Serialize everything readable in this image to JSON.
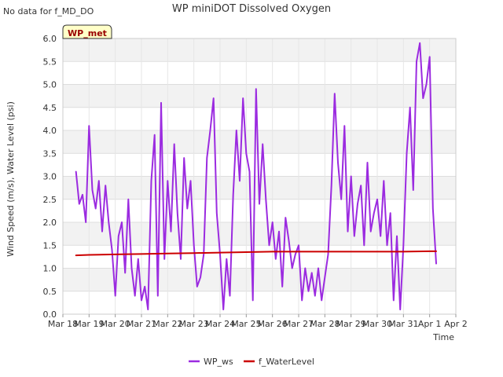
{
  "header": {
    "no_data_note": "No data for f_MD_DO",
    "badge": "WP_met"
  },
  "chart_data": {
    "type": "line",
    "title": "WP miniDOT Dissolved Oxygen",
    "xlabel": "Time",
    "ylabel": "Wind Speed (m/s), Water Level (psi)",
    "xlim": [
      "2024-03-18",
      "2024-04-02"
    ],
    "ylim": [
      0,
      6.0
    ],
    "x_tick_labels": [
      "Mar 18",
      "Mar 19",
      "Mar 20",
      "Mar 21",
      "Mar 22",
      "Mar 23",
      "Mar 24",
      "Mar 25",
      "Mar 26",
      "Mar 27",
      "Mar 28",
      "Mar 29",
      "Mar 30",
      "Mar 31",
      "Apr 1",
      "Apr 2"
    ],
    "y_ticks": [
      0.0,
      0.5,
      1.0,
      1.5,
      2.0,
      2.5,
      3.0,
      3.5,
      4.0,
      4.5,
      5.0,
      5.5,
      6.0
    ],
    "y_tick_labels": [
      "0.0",
      "0.5",
      "1.0",
      "1.5",
      "2.0",
      "2.5",
      "3.0",
      "3.5",
      "4.0",
      "4.5",
      "5.0",
      "5.5",
      "6.0"
    ],
    "grid": true,
    "legend_position": "bottom-center",
    "series": [
      {
        "name": "WP_ws",
        "color": "#9b2be0",
        "x": [
          "2024-03-18T12:00",
          "2024-03-18T15:00",
          "2024-03-18T18:00",
          "2024-03-18T21:00",
          "2024-03-19T00:00",
          "2024-03-19T03:00",
          "2024-03-19T06:00",
          "2024-03-19T09:00",
          "2024-03-19T12:00",
          "2024-03-19T15:00",
          "2024-03-19T18:00",
          "2024-03-19T21:00",
          "2024-03-20T00:00",
          "2024-03-20T03:00",
          "2024-03-20T06:00",
          "2024-03-20T09:00",
          "2024-03-20T12:00",
          "2024-03-20T15:00",
          "2024-03-20T18:00",
          "2024-03-20T21:00",
          "2024-03-21T00:00",
          "2024-03-21T03:00",
          "2024-03-21T06:00",
          "2024-03-21T09:00",
          "2024-03-21T12:00",
          "2024-03-21T15:00",
          "2024-03-21T18:00",
          "2024-03-21T21:00",
          "2024-03-22T00:00",
          "2024-03-22T03:00",
          "2024-03-22T06:00",
          "2024-03-22T09:00",
          "2024-03-22T12:00",
          "2024-03-22T15:00",
          "2024-03-22T18:00",
          "2024-03-22T21:00",
          "2024-03-23T00:00",
          "2024-03-23T03:00",
          "2024-03-23T06:00",
          "2024-03-23T09:00",
          "2024-03-23T12:00",
          "2024-03-23T15:00",
          "2024-03-23T18:00",
          "2024-03-23T21:00",
          "2024-03-24T00:00",
          "2024-03-24T03:00",
          "2024-03-24T06:00",
          "2024-03-24T09:00",
          "2024-03-24T12:00",
          "2024-03-24T15:00",
          "2024-03-24T18:00",
          "2024-03-24T21:00",
          "2024-03-25T00:00",
          "2024-03-25T03:00",
          "2024-03-25T06:00",
          "2024-03-25T09:00",
          "2024-03-25T12:00",
          "2024-03-25T15:00",
          "2024-03-25T18:00",
          "2024-03-25T21:00",
          "2024-03-26T00:00",
          "2024-03-26T03:00",
          "2024-03-26T06:00",
          "2024-03-26T09:00",
          "2024-03-26T12:00",
          "2024-03-26T15:00",
          "2024-03-26T18:00",
          "2024-03-26T21:00",
          "2024-03-27T00:00",
          "2024-03-27T03:00",
          "2024-03-27T06:00",
          "2024-03-27T09:00",
          "2024-03-27T12:00",
          "2024-03-27T15:00",
          "2024-03-27T18:00",
          "2024-03-27T21:00",
          "2024-03-28T00:00",
          "2024-03-28T03:00",
          "2024-03-28T06:00",
          "2024-03-28T09:00",
          "2024-03-28T12:00",
          "2024-03-28T15:00",
          "2024-03-28T18:00",
          "2024-03-28T21:00",
          "2024-03-29T00:00",
          "2024-03-29T03:00",
          "2024-03-29T06:00",
          "2024-03-29T09:00",
          "2024-03-29T12:00",
          "2024-03-29T15:00",
          "2024-03-29T18:00",
          "2024-03-29T21:00",
          "2024-03-30T00:00",
          "2024-03-30T03:00",
          "2024-03-30T06:00",
          "2024-03-30T09:00",
          "2024-03-30T12:00",
          "2024-03-30T15:00",
          "2024-03-30T18:00",
          "2024-03-30T21:00",
          "2024-03-31T00:00",
          "2024-03-31T03:00",
          "2024-03-31T06:00",
          "2024-03-31T09:00",
          "2024-03-31T12:00",
          "2024-03-31T15:00",
          "2024-03-31T18:00",
          "2024-03-31T21:00",
          "2024-04-01T00:00",
          "2024-04-01T03:00",
          "2024-04-01T06:00"
        ],
        "values": [
          3.1,
          2.4,
          2.6,
          2.0,
          4.1,
          2.7,
          2.3,
          2.9,
          1.8,
          2.8,
          2.0,
          1.4,
          0.4,
          1.7,
          2.0,
          0.9,
          2.5,
          1.0,
          0.4,
          1.2,
          0.3,
          0.6,
          0.1,
          2.9,
          3.9,
          0.4,
          4.6,
          1.2,
          2.9,
          1.8,
          3.7,
          2.2,
          1.2,
          3.4,
          2.3,
          2.9,
          1.5,
          0.6,
          0.8,
          1.3,
          3.4,
          4.0,
          4.7,
          2.2,
          1.3,
          0.1,
          1.2,
          0.4,
          2.6,
          4.0,
          2.9,
          4.7,
          3.5,
          3.1,
          0.3,
          4.9,
          2.4,
          3.7,
          2.5,
          1.5,
          2.0,
          1.2,
          1.8,
          0.6,
          2.1,
          1.6,
          1.0,
          1.3,
          1.5,
          0.3,
          1.0,
          0.5,
          0.9,
          0.4,
          1.0,
          0.3,
          0.8,
          1.3,
          2.8,
          4.8,
          3.3,
          2.5,
          4.1,
          1.8,
          3.0,
          1.7,
          2.4,
          2.8,
          1.5,
          3.3,
          1.8,
          2.2,
          2.5,
          1.7,
          2.9,
          1.5,
          2.2,
          0.3,
          1.7,
          0.1,
          1.5,
          3.5,
          4.5,
          2.7,
          5.5,
          5.9,
          4.7,
          5.0,
          5.6,
          2.3,
          1.1
        ]
      },
      {
        "name": "f_WaterLevel",
        "color": "#cc0000",
        "x": [
          "2024-03-18T12:00",
          "2024-03-19T00:00",
          "2024-03-20T00:00",
          "2024-03-21T00:00",
          "2024-03-22T00:00",
          "2024-03-23T00:00",
          "2024-03-24T00:00",
          "2024-03-25T00:00",
          "2024-03-26T00:00",
          "2024-03-27T00:00",
          "2024-03-28T00:00",
          "2024-03-29T00:00",
          "2024-03-30T00:00",
          "2024-03-31T00:00",
          "2024-04-01T00:00",
          "2024-04-01T06:00"
        ],
        "values": [
          1.28,
          1.29,
          1.3,
          1.31,
          1.32,
          1.33,
          1.34,
          1.35,
          1.36,
          1.36,
          1.36,
          1.36,
          1.36,
          1.36,
          1.37,
          1.37
        ]
      }
    ]
  }
}
